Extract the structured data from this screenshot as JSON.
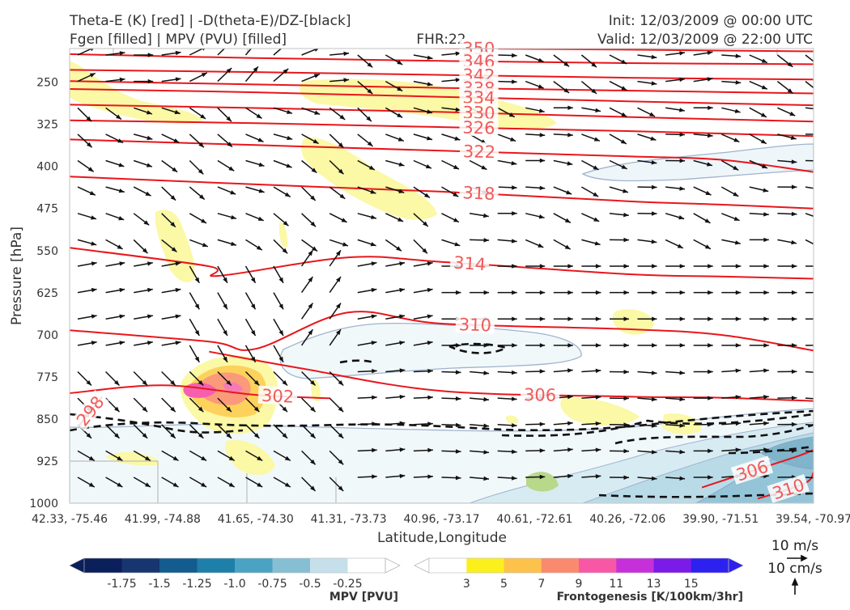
{
  "header": {
    "title_left_line1": "Theta-E (K) [red] | -D(theta-E)/DZ-[black]",
    "title_left_line2": "Fgen [filled] | MPV (PVU) [filled]",
    "fhr": "FHR:22",
    "init": "Init: 12/03/2009 @ 00:00 UTC",
    "valid": "Valid: 12/03/2009 @ 22:00 UTC"
  },
  "chart_data": {
    "type": "cross-section",
    "xlabel": "Latitude,Longitude",
    "ylabel": "Pressure [hPa]",
    "x_ticks": [
      "42.33, -75.46",
      "41.99, -74.88",
      "41.65, -74.30",
      "41.31, -73.73",
      "40.96, -73.17",
      "40.61, -72.61",
      "40.26, -72.06",
      "39.90, -71.51",
      "39.54, -70.97"
    ],
    "y_ticks": [
      250,
      325,
      400,
      475,
      550,
      625,
      700,
      775,
      850,
      925,
      1000
    ],
    "ylim": [
      1000,
      190
    ],
    "theta_e_contours": [
      {
        "label": "350",
        "points": [
          [
            0,
            180
          ],
          [
            3,
            188
          ],
          [
            6,
            192
          ],
          [
            8,
            195
          ]
        ]
      },
      {
        "label": "346",
        "points": [
          [
            0,
            200
          ],
          [
            2,
            207
          ],
          [
            4,
            212
          ],
          [
            6,
            216
          ],
          [
            8,
            218
          ]
        ]
      },
      {
        "label": "342",
        "points": [
          [
            0,
            228
          ],
          [
            2,
            232
          ],
          [
            4,
            237
          ],
          [
            6,
            242
          ],
          [
            8,
            245
          ]
        ]
      },
      {
        "label": "338",
        "points": [
          [
            0,
            248
          ],
          [
            2,
            254
          ],
          [
            4,
            260
          ],
          [
            6,
            265
          ],
          [
            8,
            270
          ]
        ]
      },
      {
        "label": "334",
        "points": [
          [
            0,
            262
          ],
          [
            2,
            268
          ],
          [
            4,
            276
          ],
          [
            6,
            284
          ],
          [
            8,
            291
          ]
        ]
      },
      {
        "label": "330",
        "points": [
          [
            0,
            290
          ],
          [
            2,
            296
          ],
          [
            4,
            303
          ],
          [
            6,
            312
          ],
          [
            8,
            320
          ]
        ]
      },
      {
        "label": "326",
        "points": [
          [
            0,
            318
          ],
          [
            2,
            323
          ],
          [
            4,
            330
          ],
          [
            6,
            337
          ],
          [
            8,
            346
          ]
        ]
      },
      {
        "label": "322",
        "points": [
          [
            0,
            352
          ],
          [
            2,
            362
          ],
          [
            4,
            372
          ],
          [
            6,
            382
          ],
          [
            7,
            388
          ],
          [
            8,
            410
          ]
        ]
      },
      {
        "label": "318",
        "points": [
          [
            0,
            418
          ],
          [
            2,
            432
          ],
          [
            4,
            445
          ],
          [
            6,
            462
          ],
          [
            7,
            468
          ],
          [
            8,
            475
          ]
        ]
      },
      {
        "label": "314",
        "points": [
          [
            0,
            545
          ],
          [
            1.5,
            578
          ],
          [
            1.6,
            595
          ],
          [
            3,
            562
          ],
          [
            4,
            570
          ],
          [
            6,
            592
          ],
          [
            7,
            596
          ],
          [
            8,
            600
          ]
        ]
      },
      {
        "label": "310",
        "points": [
          [
            0,
            692
          ],
          [
            1.5,
            712
          ],
          [
            2,
            725
          ],
          [
            3,
            660
          ],
          [
            4,
            680
          ],
          [
            6,
            690
          ],
          [
            7,
            700
          ],
          [
            8,
            728
          ]
        ]
      },
      {
        "label": "306",
        "points": [
          [
            1.5,
            730
          ],
          [
            2.5,
            760
          ],
          [
            4,
            800
          ],
          [
            6,
            810
          ],
          [
            7,
            812
          ],
          [
            8,
            818
          ]
        ]
      },
      {
        "label": "302",
        "points": [
          [
            0,
            804
          ],
          [
            1,
            790
          ],
          [
            2,
            807
          ],
          [
            2.8,
            813
          ]
        ]
      },
      {
        "label": "298",
        "points": [
          [
            0.1,
            862
          ],
          [
            0.35,
            810
          ]
        ]
      },
      {
        "label": "306",
        "points": [
          [
            6.8,
            972
          ],
          [
            7.2,
            950
          ],
          [
            7.8,
            918
          ],
          [
            8,
            905
          ]
        ]
      },
      {
        "label": "310",
        "points": [
          [
            7.4,
            992
          ],
          [
            7.9,
            965
          ],
          [
            8,
            945
          ]
        ]
      }
    ],
    "mpv_colorbar": {
      "label": "MPV [PVU]",
      "ticks": [
        "-1.75",
        "-1.5",
        "-1.25",
        "-1.0",
        "-0.75",
        "-0.5",
        "-0.25"
      ],
      "colors": [
        "#0b1f5a",
        "#17356f",
        "#145b8e",
        "#1e7fa9",
        "#4aa3c2",
        "#86bfd4",
        "#c5e0ea",
        "#ffffff"
      ]
    },
    "fgen_colorbar": {
      "label": "Frontogenesis [K/100km/3hr]",
      "ticks": [
        "3",
        "5",
        "7",
        "9",
        "11",
        "13",
        "15"
      ],
      "colors": [
        "#ffffff",
        "#fcf01c",
        "#fcc24c",
        "#fa8a6e",
        "#f857a6",
        "#c630d8",
        "#7a1be8",
        "#2d21f0"
      ]
    },
    "vector_key": {
      "u_label": "10 m/s",
      "w_label": "10 cm/s"
    },
    "theta_e_color": "#e8161b",
    "label_color": "#f05a5a"
  }
}
